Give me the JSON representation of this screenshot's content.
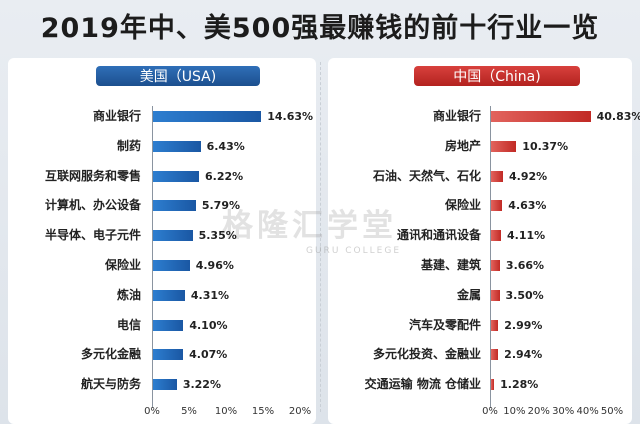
{
  "title": "2019年中、美500强最赚钱的前十行业一览",
  "watermark": {
    "main": "格隆汇学堂",
    "sub": "GURU COLLEGE"
  },
  "colors": {
    "usa_bar": "#1f63b0",
    "china_bar": "#c62f2a",
    "usa_header": "#245fa3",
    "china_header": "#c52e2a"
  },
  "chart_data": [
    {
      "type": "bar",
      "orientation": "horizontal",
      "title": "美国（USA)",
      "categories": [
        "商业银行",
        "制药",
        "互联网服务和零售",
        "计算机、办公设备",
        "半导体、电子元件",
        "保险业",
        "炼油",
        "电信",
        "多元化金融",
        "航天与防务"
      ],
      "values": [
        14.63,
        6.43,
        6.22,
        5.79,
        5.35,
        4.96,
        4.31,
        4.1,
        4.07,
        3.22
      ],
      "value_labels": [
        "14.63%",
        "6.43%",
        "6.22%",
        "5.79%",
        "5.35%",
        "4.96%",
        "4.31%",
        "4.10%",
        "4.07%",
        "3.22%"
      ],
      "xlim": [
        0,
        20
      ],
      "x_ticks": [
        "0%",
        "5%",
        "10%",
        "15%",
        "20%"
      ],
      "grid": false
    },
    {
      "type": "bar",
      "orientation": "horizontal",
      "title": "中国（China)",
      "categories": [
        "商业银行",
        "房地产",
        "石油、天然气、石化",
        "保险业",
        "通讯和通讯设备",
        "基建、建筑",
        "金属",
        "汽车及零配件",
        "多元化投资、金融业",
        "交通运输 物流 仓储业"
      ],
      "values": [
        40.83,
        10.37,
        4.92,
        4.63,
        4.11,
        3.66,
        3.5,
        2.99,
        2.94,
        1.28
      ],
      "value_labels": [
        "40.83%",
        "10.37%",
        "4.92%",
        "4.63%",
        "4.11%",
        "3.66%",
        "3.50%",
        "2.99%",
        "2.94%",
        "1.28%"
      ],
      "xlim": [
        0,
        50
      ],
      "x_ticks": [
        "0%",
        "10%",
        "20%",
        "30%",
        "40%",
        "50%"
      ],
      "grid": false
    }
  ]
}
